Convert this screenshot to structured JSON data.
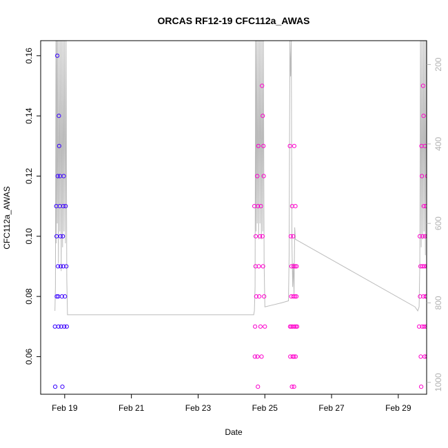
{
  "chart_data": {
    "type": "scatter",
    "title": "ORCAS RF12-19 CFC112a_AWAS",
    "xlabel": "Date",
    "ylabel": "CFC112a_AWAS",
    "x_ticks": [
      "Feb 19",
      "Feb 21",
      "Feb 23",
      "Feb 25",
      "Feb 27",
      "Feb 29"
    ],
    "y_ticks": [
      "0.06",
      "0.08",
      "0.10",
      "0.12",
      "0.14",
      "0.16"
    ],
    "y2_ticks": [
      "200",
      "400",
      "600",
      "800",
      "1000"
    ],
    "xlim": [
      "2016-02-18",
      "2016-03-01"
    ],
    "ylim": [
      0.0475,
      0.165
    ],
    "y2lim": [
      1030,
      140
    ],
    "y2_reversed": true,
    "colors": {
      "early": "#3300ff",
      "late": "#ff00cc",
      "line": "#bbbbbb"
    },
    "series": [
      {
        "points": [
          [
            "2016-02-18T17:00",
            0.07
          ],
          [
            "2016-02-18T17:10",
            0.05
          ],
          [
            "2016-02-18T18:00",
            0.11
          ],
          [
            "2016-02-18T18:10",
            0.1
          ],
          [
            "2016-02-18T18:20",
            0.08
          ],
          [
            "2016-02-18T18:40",
            0.16
          ],
          [
            "2016-02-18T19:00",
            0.12
          ],
          [
            "2016-02-18T19:10",
            0.09
          ],
          [
            "2016-02-18T19:20",
            0.08
          ],
          [
            "2016-02-18T19:30",
            0.07
          ],
          [
            "2016-02-18T19:50",
            0.14
          ],
          [
            "2016-02-18T20:00",
            0.13
          ],
          [
            "2016-02-18T20:30",
            0.11
          ],
          [
            "2016-02-18T20:40",
            0.12
          ],
          [
            "2016-02-18T21:00",
            0.1
          ],
          [
            "2016-02-18T21:10",
            0.09
          ],
          [
            "2016-02-18T21:30",
            0.07
          ],
          [
            "2016-02-18T22:00",
            0.08
          ],
          [
            "2016-02-18T22:20",
            0.05
          ],
          [
            "2016-02-18T22:40",
            0.1
          ],
          [
            "2016-02-18T23:00",
            0.11
          ],
          [
            "2016-02-18T23:00",
            0.09
          ],
          [
            "2016-02-18T23:20",
            0.12
          ],
          [
            "2016-02-18T23:40",
            0.07
          ],
          [
            "2016-02-19T00:10",
            0.08
          ],
          [
            "2016-02-19T00:40",
            0.11
          ],
          [
            "2016-02-19T01:10",
            0.09
          ],
          [
            "2016-02-19T01:30",
            0.07
          ],
          [
            "2016-02-24T16:30",
            0.11
          ],
          [
            "2016-02-24T16:50",
            0.06
          ],
          [
            "2016-02-24T17:00",
            0.07
          ],
          [
            "2016-02-24T17:20",
            0.09
          ],
          [
            "2016-02-24T17:30",
            0.1
          ],
          [
            "2016-02-24T17:50",
            0.08
          ],
          [
            "2016-02-24T18:30",
            0.12
          ],
          [
            "2016-02-24T18:40",
            0.06
          ],
          [
            "2016-02-24T19:00",
            0.05
          ],
          [
            "2016-02-24T19:00",
            0.11
          ],
          [
            "2016-02-24T19:20",
            0.13
          ],
          [
            "2016-02-24T19:40",
            0.09
          ],
          [
            "2016-02-24T20:00",
            0.08
          ],
          [
            "2016-02-24T20:30",
            0.1
          ],
          [
            "2016-02-24T20:50",
            0.07
          ],
          [
            "2016-02-24T21:10",
            0.11
          ],
          [
            "2016-02-24T21:40",
            0.06
          ],
          [
            "2016-02-24T22:00",
            0.15
          ],
          [
            "2016-02-24T22:20",
            0.1
          ],
          [
            "2016-02-24T22:30",
            0.14
          ],
          [
            "2016-02-24T22:40",
            0.09
          ],
          [
            "2016-02-24T23:00",
            0.13
          ],
          [
            "2016-02-24T23:10",
            0.12
          ],
          [
            "2016-02-24T23:30",
            0.08
          ],
          [
            "2016-02-25T00:00",
            0.07
          ]
        ]
      },
      {
        "points": [
          [
            "2016-02-25T18:00",
            0.13
          ],
          [
            "2016-02-25T18:10",
            0.07
          ],
          [
            "2016-02-25T18:20",
            0.06
          ],
          [
            "2016-02-25T18:40",
            0.1
          ],
          [
            "2016-02-25T19:00",
            0.08
          ],
          [
            "2016-02-25T19:00",
            0.07
          ],
          [
            "2016-02-25T19:10",
            0.09
          ],
          [
            "2016-02-25T19:30",
            0.05
          ],
          [
            "2016-02-25T19:40",
            0.11
          ],
          [
            "2016-02-25T20:00",
            0.06
          ],
          [
            "2016-02-25T20:00",
            0.07
          ],
          [
            "2016-02-25T20:20",
            0.1
          ],
          [
            "2016-02-25T20:30",
            0.08
          ],
          [
            "2016-02-25T20:40",
            0.09
          ],
          [
            "2016-02-25T21:00",
            0.05
          ],
          [
            "2016-02-25T21:00",
            0.06
          ],
          [
            "2016-02-25T21:10",
            0.13
          ],
          [
            "2016-02-25T21:20",
            0.07
          ],
          [
            "2016-02-25T21:40",
            0.08
          ],
          [
            "2016-02-25T21:50",
            0.09
          ],
          [
            "2016-02-25T22:00",
            0.11
          ],
          [
            "2016-02-25T22:10",
            0.06
          ],
          [
            "2016-02-25T22:20",
            0.07
          ],
          [
            "2016-02-25T22:40",
            0.08
          ],
          [
            "2016-02-25T22:50",
            0.09
          ],
          [
            "2016-02-25T23:10",
            0.07
          ],
          [
            "2016-02-29T15:00",
            0.07
          ],
          [
            "2016-02-29T15:30",
            0.1
          ],
          [
            "2016-02-29T15:40",
            0.08
          ],
          [
            "2016-02-29T16:00",
            0.09
          ],
          [
            "2016-02-29T16:10",
            0.06
          ],
          [
            "2016-02-29T16:30",
            0.05
          ],
          [
            "2016-02-29T16:40",
            0.13
          ],
          [
            "2016-02-29T17:00",
            0.12
          ],
          [
            "2016-02-29T17:10",
            0.07
          ],
          [
            "2016-02-29T17:20",
            0.09
          ],
          [
            "2016-02-29T17:30",
            0.1
          ],
          [
            "2016-02-29T17:50",
            0.15
          ],
          [
            "2016-02-29T18:00",
            0.08
          ],
          [
            "2016-02-29T18:10",
            0.14
          ],
          [
            "2016-02-29T18:20",
            0.11
          ],
          [
            "2016-02-29T18:30",
            0.07
          ],
          [
            "2016-02-29T18:40",
            0.09
          ],
          [
            "2016-02-29T19:00",
            0.06
          ],
          [
            "2016-02-29T19:10",
            0.13
          ],
          [
            "2016-02-29T19:20",
            0.1
          ],
          [
            "2016-02-29T19:40",
            0.08
          ],
          [
            "2016-02-29T19:50",
            0.11
          ],
          [
            "2016-02-29T20:00",
            0.07
          ],
          [
            "2016-02-29T20:10",
            0.09
          ],
          [
            "2016-02-29T20:30",
            0.06
          ],
          [
            "2016-02-29T20:40",
            0.08
          ],
          [
            "2016-02-29T20:50",
            0.12
          ],
          [
            "2016-02-29T21:00",
            0.1
          ],
          [
            "2016-02-29T21:20",
            0.09
          ],
          [
            "2016-02-29T21:30",
            0.07
          ],
          [
            "2016-02-29T21:50",
            0.08
          ],
          [
            "2016-02-29T22:10",
            0.09
          ],
          [
            "2016-02-29T22:40",
            0.06
          ],
          [
            "2016-02-29T23:00",
            0.07
          ],
          [
            "2016-02-29T23:10",
            0.09
          ]
        ]
      }
    ],
    "secondary_line": [
      [
        "2016-02-18T17:00",
        820
      ],
      [
        "2016-02-18T17:20",
        760
      ],
      [
        "2016-02-18T17:40",
        140
      ],
      [
        "2016-02-18T18:00",
        650
      ],
      [
        "2016-02-18T18:20",
        140
      ],
      [
        "2016-02-18T18:40",
        600
      ],
      [
        "2016-02-18T19:00",
        140
      ],
      [
        "2016-02-18T19:30",
        700
      ],
      [
        "2016-02-18T20:00",
        140
      ],
      [
        "2016-02-18T20:30",
        620
      ],
      [
        "2016-02-18T21:00",
        140
      ],
      [
        "2016-02-18T21:30",
        720
      ],
      [
        "2016-02-18T22:00",
        140
      ],
      [
        "2016-02-18T22:30",
        660
      ],
      [
        "2016-02-18T23:00",
        140
      ],
      [
        "2016-02-18T23:30",
        620
      ],
      [
        "2016-02-19T00:00",
        140
      ],
      [
        "2016-02-19T00:30",
        650
      ],
      [
        "2016-02-19T01:00",
        140
      ],
      [
        "2016-02-19T01:30",
        740
      ],
      [
        "2016-02-19T02:00",
        830
      ],
      [
        "2016-02-19T02:30",
        830
      ],
      [
        "2016-02-24T16:00",
        830
      ],
      [
        "2016-02-24T16:30",
        820
      ],
      [
        "2016-02-24T17:00",
        760
      ],
      [
        "2016-02-24T17:20",
        140
      ],
      [
        "2016-02-24T17:40",
        620
      ],
      [
        "2016-02-24T18:00",
        140
      ],
      [
        "2016-02-24T18:30",
        600
      ],
      [
        "2016-02-24T19:00",
        140
      ],
      [
        "2016-02-24T19:30",
        640
      ],
      [
        "2016-02-24T20:00",
        140
      ],
      [
        "2016-02-24T20:30",
        600
      ],
      [
        "2016-02-24T21:00",
        140
      ],
      [
        "2016-02-24T21:30",
        640
      ],
      [
        "2016-02-24T22:00",
        140
      ],
      [
        "2016-02-24T22:30",
        620
      ],
      [
        "2016-02-24T23:00",
        140
      ],
      [
        "2016-02-24T23:30",
        700
      ],
      [
        "2016-02-25T00:00",
        810
      ],
      [
        "2016-02-25T06:00",
        805
      ],
      [
        "2016-02-25T12:00",
        800
      ],
      [
        "2016-02-25T17:00",
        795
      ],
      [
        "2016-02-25T17:30",
        680
      ],
      [
        "2016-02-25T18:00",
        140
      ],
      [
        "2016-02-25T18:30",
        230
      ],
      [
        "2016-02-25T19:00",
        140
      ],
      [
        "2016-02-25T19:30",
        650
      ],
      [
        "2016-02-25T20:00",
        760
      ],
      [
        "2016-02-25T20:30",
        700
      ],
      [
        "2016-02-25T21:00",
        780
      ],
      [
        "2016-02-25T21:30",
        610
      ],
      [
        "2016-02-25T22:00",
        640
      ],
      [
        "2016-02-29T12:00",
        810
      ],
      [
        "2016-02-29T14:00",
        820
      ],
      [
        "2016-02-29T15:00",
        810
      ],
      [
        "2016-02-29T15:30",
        700
      ],
      [
        "2016-02-29T16:00",
        140
      ],
      [
        "2016-02-29T16:30",
        660
      ],
      [
        "2016-02-29T17:00",
        140
      ],
      [
        "2016-02-29T17:30",
        640
      ],
      [
        "2016-02-29T18:00",
        140
      ],
      [
        "2016-02-29T18:30",
        620
      ],
      [
        "2016-02-29T19:00",
        140
      ],
      [
        "2016-02-29T19:30",
        680
      ],
      [
        "2016-02-29T20:00",
        140
      ],
      [
        "2016-02-29T20:30",
        700
      ],
      [
        "2016-02-29T21:00",
        140
      ],
      [
        "2016-02-29T21:30",
        760
      ],
      [
        "2016-02-29T22:00",
        820
      ],
      [
        "2016-02-29T23:00",
        820
      ]
    ]
  }
}
